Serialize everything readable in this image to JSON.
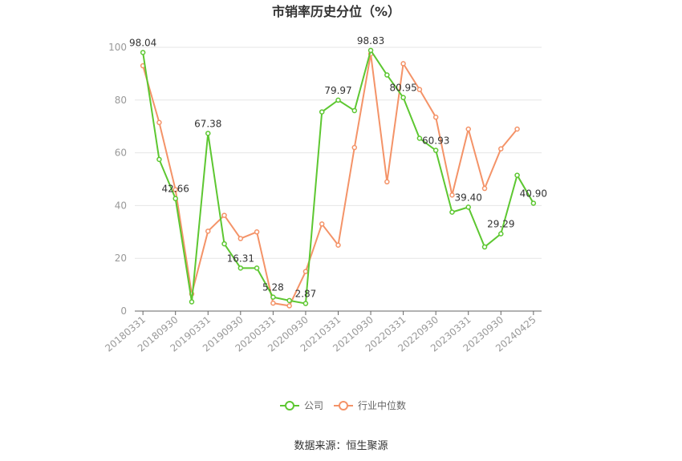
{
  "chart_data": {
    "type": "line",
    "title": "市销率历史分位（%）",
    "source": "数据来源：恒生聚源",
    "ylim": [
      0,
      100
    ],
    "yticks": [
      0,
      20,
      40,
      60,
      80,
      100
    ],
    "x_tick_labels": [
      "20180331",
      "20180930",
      "20190331",
      "20190930",
      "20200331",
      "20200930",
      "20210331",
      "20210930",
      "20220331",
      "20220930",
      "20230331",
      "20230930",
      "20240425"
    ],
    "legend_position": "bottom",
    "series": [
      {
        "name": "公司",
        "color": "#5dc731",
        "values": [
          98.04,
          57.5,
          42.66,
          3.5,
          67.38,
          25.5,
          16.31,
          16.3,
          5.28,
          4.0,
          2.87,
          75.5,
          79.97,
          76.0,
          98.83,
          89.5,
          80.95,
          65.5,
          60.93,
          37.5,
          39.4,
          24.3,
          29.29,
          51.5,
          40.9
        ],
        "labels": [
          "98.04",
          null,
          "42.66",
          null,
          "67.38",
          null,
          "16.31",
          null,
          "5.28",
          null,
          "2.87",
          null,
          "79.97",
          null,
          "98.83",
          null,
          "80.95",
          null,
          "60.93",
          null,
          "39.40",
          null,
          "29.29",
          null,
          "40.90"
        ]
      },
      {
        "name": "行业中位数",
        "color": "#f49368",
        "values": [
          93.0,
          71.5,
          46.0,
          6.5,
          30.3,
          36.3,
          27.5,
          30.0,
          3.0,
          2.0,
          15.0,
          33.0,
          25.0,
          62.0,
          97.5,
          49.0,
          93.8,
          84.0,
          73.5,
          44.0,
          69.0,
          46.5,
          61.5,
          69.0,
          null
        ]
      }
    ]
  }
}
